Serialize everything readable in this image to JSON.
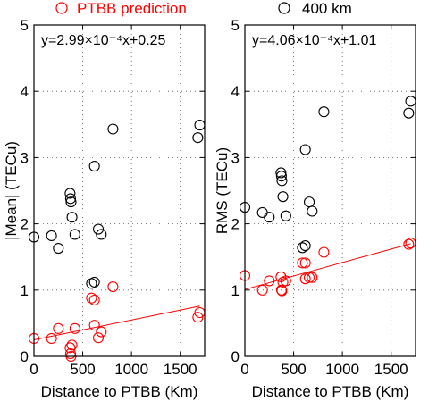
{
  "legend": {
    "items": [
      {
        "label": "PTBB prediction",
        "color": "#ff0000",
        "marker": "open-circle"
      },
      {
        "label": "400  km",
        "color": "#000000",
        "marker": "open-circle"
      }
    ]
  },
  "chart_data": [
    {
      "type": "scatter",
      "equation": "y=2.99×10⁻⁴x+0.25",
      "xlabel": "Distance to PTBB (Km)",
      "ylabel": "|Mean| (TECu)",
      "xlim": [
        0,
        1750
      ],
      "ylim": [
        0,
        5
      ],
      "xticks": [
        0,
        500,
        1000,
        1500
      ],
      "yticks": [
        0,
        1,
        2,
        3,
        4,
        5
      ],
      "grid": true,
      "fit": {
        "slope": 0.000299,
        "intercept": 0.25,
        "x_range": [
          0,
          1700
        ],
        "color": "#ff0000"
      },
      "series": [
        {
          "name": "400  km",
          "color": "#000000",
          "points": [
            [
              0,
              1.8
            ],
            [
              180,
              1.82
            ],
            [
              250,
              1.63
            ],
            [
              370,
              2.46
            ],
            [
              375,
              2.38
            ],
            [
              380,
              2.33
            ],
            [
              390,
              2.1
            ],
            [
              420,
              1.84
            ],
            [
              590,
              1.1
            ],
            [
              620,
              1.12
            ],
            [
              620,
              2.87
            ],
            [
              660,
              1.92
            ],
            [
              690,
              1.84
            ],
            [
              810,
              3.43
            ],
            [
              1680,
              3.3
            ],
            [
              1700,
              3.49
            ]
          ]
        },
        {
          "name": "PTBB prediction",
          "color": "#ff0000",
          "points": [
            [
              0,
              0.27
            ],
            [
              180,
              0.27
            ],
            [
              250,
              0.42
            ],
            [
              370,
              0.13
            ],
            [
              375,
              0.04
            ],
            [
              380,
              0.0
            ],
            [
              390,
              0.17
            ],
            [
              420,
              0.42
            ],
            [
              590,
              0.88
            ],
            [
              620,
              0.85
            ],
            [
              620,
              0.47
            ],
            [
              660,
              0.28
            ],
            [
              690,
              0.37
            ],
            [
              810,
              1.05
            ],
            [
              1680,
              0.59
            ],
            [
              1700,
              0.66
            ]
          ]
        }
      ]
    },
    {
      "type": "scatter",
      "equation": "y=4.06×10⁻⁴x+1.01",
      "xlabel": "Distance to PTBB (Km)",
      "ylabel": "RMS (TECu)",
      "xlim": [
        0,
        1750
      ],
      "ylim": [
        0,
        5
      ],
      "xticks": [
        0,
        500,
        1000,
        1500
      ],
      "yticks": [
        0,
        1,
        2,
        3,
        4,
        5
      ],
      "grid": true,
      "fit": {
        "slope": 0.000406,
        "intercept": 1.01,
        "x_range": [
          0,
          1700
        ],
        "color": "#ff0000"
      },
      "series": [
        {
          "name": "400  km",
          "color": "#000000",
          "points": [
            [
              0,
              2.25
            ],
            [
              180,
              2.17
            ],
            [
              250,
              2.1
            ],
            [
              370,
              2.77
            ],
            [
              375,
              2.72
            ],
            [
              380,
              2.65
            ],
            [
              390,
              2.41
            ],
            [
              420,
              2.12
            ],
            [
              590,
              1.64
            ],
            [
              620,
              1.67
            ],
            [
              620,
              3.12
            ],
            [
              660,
              2.33
            ],
            [
              690,
              2.19
            ],
            [
              810,
              3.69
            ],
            [
              1680,
              3.67
            ],
            [
              1700,
              3.85
            ]
          ]
        },
        {
          "name": "PTBB prediction",
          "color": "#ff0000",
          "points": [
            [
              0,
              1.22
            ],
            [
              180,
              1.0
            ],
            [
              250,
              1.14
            ],
            [
              370,
              1.2
            ],
            [
              375,
              1.0
            ],
            [
              380,
              0.99
            ],
            [
              390,
              1.12
            ],
            [
              420,
              1.14
            ],
            [
              590,
              1.41
            ],
            [
              620,
              1.17
            ],
            [
              620,
              1.41
            ],
            [
              660,
              1.19
            ],
            [
              690,
              1.19
            ],
            [
              810,
              1.57
            ],
            [
              1680,
              1.69
            ],
            [
              1700,
              1.71
            ]
          ]
        }
      ]
    }
  ]
}
